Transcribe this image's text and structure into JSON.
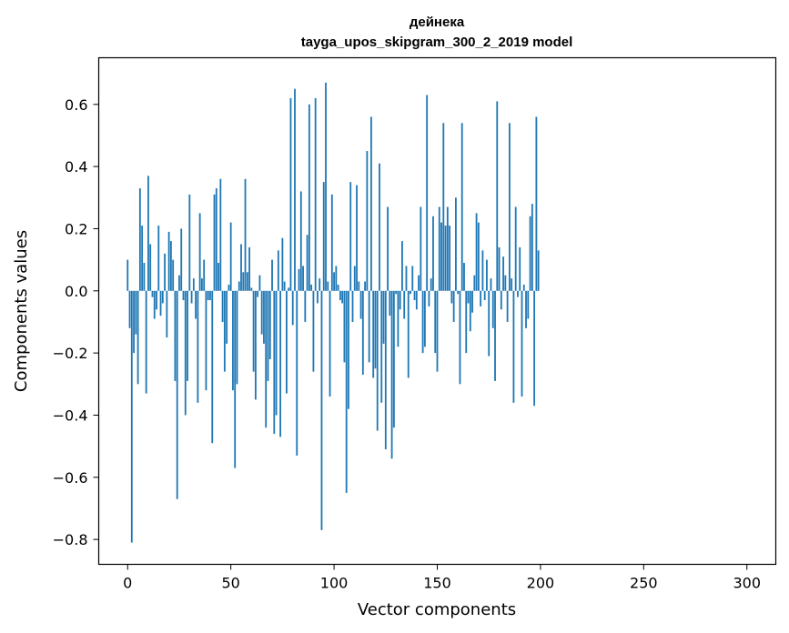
{
  "chart_data": {
    "type": "bar",
    "title_line1": "дейнека",
    "title_line2": "tayga_upos_skipgram_300_2_2019 model",
    "xlabel": "Vector components",
    "ylabel": "Components values",
    "xlim": [
      -14,
      314
    ],
    "ylim": [
      -0.88,
      0.75
    ],
    "xticks": [
      0,
      50,
      100,
      150,
      200,
      250,
      300
    ],
    "xtick_labels": [
      "0",
      "50",
      "100",
      "150",
      "200",
      "250",
      "300"
    ],
    "yticks": [
      -0.8,
      -0.6,
      -0.4,
      -0.2,
      0.0,
      0.2,
      0.4,
      0.6
    ],
    "ytick_labels": [
      "−0.8",
      "−0.6",
      "−0.4",
      "−0.2",
      "0.0",
      "0.2",
      "0.4",
      "0.6"
    ],
    "bar_color": "#1f77b4",
    "grid": false,
    "x_start": 0,
    "values": [
      0.1,
      -0.12,
      -0.81,
      -0.2,
      -0.14,
      -0.3,
      0.33,
      0.21,
      0.09,
      -0.33,
      0.37,
      0.15,
      -0.02,
      -0.09,
      -0.06,
      0.21,
      -0.08,
      -0.04,
      0.12,
      -0.15,
      0.19,
      0.16,
      0.1,
      -0.29,
      -0.67,
      0.05,
      0.2,
      -0.03,
      -0.4,
      -0.29,
      0.31,
      -0.04,
      0.04,
      -0.09,
      -0.36,
      0.25,
      0.04,
      0.1,
      -0.32,
      -0.03,
      -0.03,
      -0.49,
      0.31,
      0.33,
      0.09,
      0.36,
      -0.1,
      -0.26,
      -0.17,
      0.02,
      0.22,
      -0.32,
      -0.57,
      -0.3,
      0.03,
      0.15,
      0.06,
      0.36,
      0.06,
      0.14,
      0.01,
      -0.26,
      -0.35,
      -0.02,
      0.05,
      -0.14,
      -0.17,
      -0.44,
      -0.29,
      -0.22,
      0.1,
      -0.46,
      -0.4,
      0.13,
      -0.47,
      0.17,
      0.03,
      -0.33,
      0.01,
      0.62,
      -0.11,
      0.65,
      -0.53,
      0.07,
      0.32,
      0.08,
      -0.1,
      0.18,
      0.6,
      0.02,
      -0.26,
      0.62,
      -0.04,
      0.04,
      -0.77,
      0.35,
      0.67,
      0.03,
      -0.34,
      0.31,
      0.06,
      0.08,
      0.02,
      -0.03,
      -0.04,
      -0.23,
      -0.65,
      -0.38,
      0.35,
      -0.1,
      0.08,
      0.34,
      0.03,
      -0.09,
      -0.27,
      0.03,
      0.45,
      -0.23,
      0.56,
      -0.28,
      -0.25,
      -0.45,
      0.41,
      -0.36,
      -0.17,
      -0.51,
      0.27,
      -0.08,
      -0.54,
      -0.44,
      -0.01,
      -0.18,
      -0.06,
      0.16,
      -0.09,
      0.08,
      -0.28,
      -0.01,
      0.08,
      -0.03,
      -0.06,
      0.05,
      0.27,
      -0.2,
      -0.18,
      0.63,
      -0.05,
      0.04,
      0.24,
      -0.2,
      -0.26,
      0.27,
      0.22,
      0.54,
      0.21,
      0.27,
      0.21,
      -0.04,
      -0.1,
      0.3,
      -0.01,
      -0.3,
      0.54,
      0.09,
      -0.2,
      -0.04,
      -0.13,
      -0.07,
      0.05,
      0.25,
      0.22,
      -0.05,
      0.13,
      -0.03,
      0.1,
      -0.21,
      0.04,
      -0.12,
      -0.29,
      0.61,
      0.14,
      -0.06,
      0.11,
      0.05,
      -0.1,
      0.54,
      0.04,
      -0.36,
      0.27,
      -0.02,
      0.14,
      -0.34,
      0.02,
      -0.12,
      -0.09,
      0.24,
      0.28,
      -0.37,
      0.56,
      0.13
    ]
  }
}
